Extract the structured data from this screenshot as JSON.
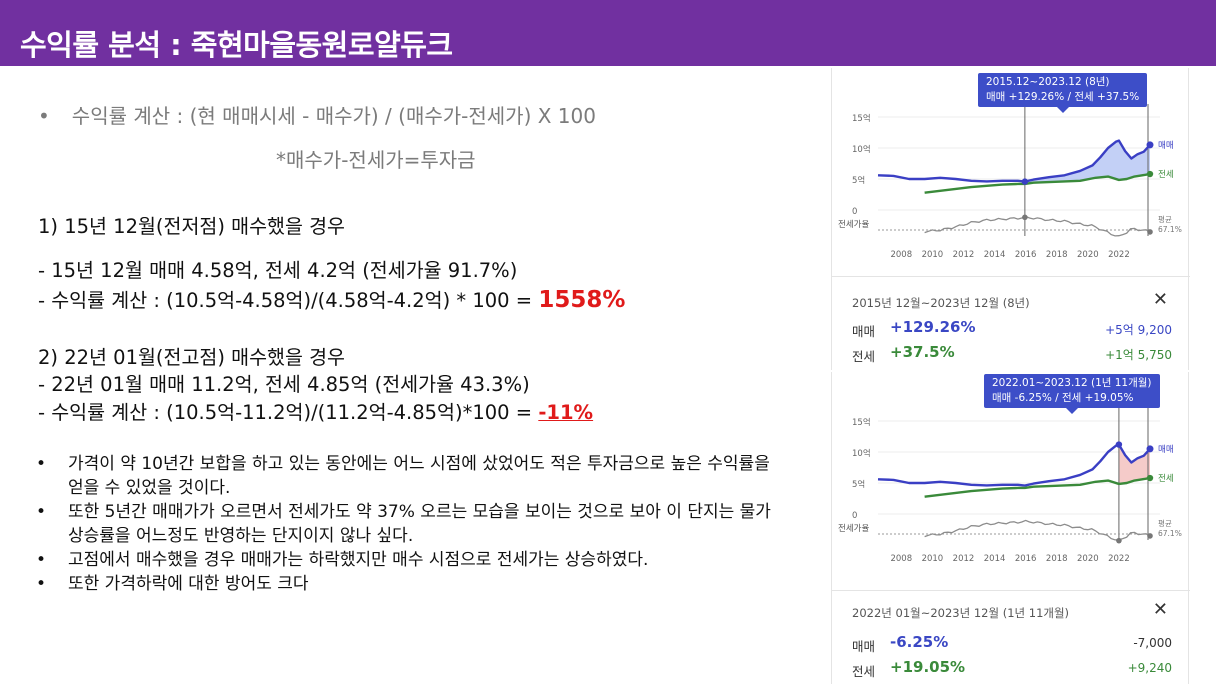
{
  "header": {
    "title": "수익률 분석 : 죽현마을동원로얄듀크"
  },
  "formula": {
    "bullet": "•",
    "text": "수익률 계산 : (현 매매시세 - 매수가) / (매수가-전세가) X 100",
    "note": "*매수가-전세가=투자금"
  },
  "case1": {
    "heading": "1)  15년 12월(전저점) 매수했을 경우",
    "line1": "- 15년 12월 매매 4.58억, 전세 4.2억 (전세가율 91.7%)",
    "line2_prefix": "- 수익률 계산 : (10.5억-4.58억)/(4.58억-4.2억)  * 100  = ",
    "result": "1558%"
  },
  "case2": {
    "heading": "2)  22년 01월(전고점) 매수했을 경우",
    "line1": "- 22년 01월 매매 11.2억, 전세 4.85억 (전세가율 43.3%)",
    "line2_prefix": "- 수익률 계산 : (10.5억-11.2억)/(11.2억-4.85억)*100  = ",
    "result": "-11%"
  },
  "bullets": [
    {
      "mark": "•",
      "text": "가격이 약 10년간 보합을 하고 있는 동안에는 어느 시점에 샀었어도 적은 투자금으로 높은 수익률을 얻을 수 있었을 것이다."
    },
    {
      "mark": "•",
      "text": "또한 5년간 매매가가 오르면서 전세가도 약 37% 오르는 모습을 보이는 것으로 보아 이 단지는 물가상승률을 어느정도 반영하는 단지이지 않나 싶다."
    },
    {
      "mark": "•",
      "text": "고점에서 매수했을 경우 매매가는 하락했지만 매수 시점으로 전세가는 상승하였다."
    },
    {
      "mark": "•",
      "text": "또한 가격하락에 대한 방어도 크다"
    }
  ],
  "charts": [
    {
      "tooltip_line1": "2015.12~2023.12 (8년)",
      "tooltip_line2": "매매 +129.26%  /  전세 +37.5%",
      "period": "2015년 12월~2023년 12월 (8년)",
      "close": "✕",
      "sale_label": "매매",
      "sale_pct": "+129.26%",
      "sale_amt": "+5억 9,200",
      "jeonse_label": "전세",
      "jeonse_pct": "+37.5%",
      "jeonse_amt": "+1억 5,750",
      "start": 2015.95
    },
    {
      "tooltip_line1": "2022.01~2023.12 (1년 11개월)",
      "tooltip_line2": "매매 -6.25%  /  전세 +19.05%",
      "period": "2022년 01월~2023년 12월 (1년 11개월)",
      "close": "✕",
      "sale_label": "매매",
      "sale_pct": "-6.25%",
      "sale_amt": "-7,000",
      "jeonse_label": "전세",
      "jeonse_pct": "+19.05%",
      "jeonse_amt": "+9,240",
      "start": 2022.0
    }
  ],
  "chart_data": {
    "type": "line",
    "ylabels": [
      "15억",
      "10억",
      "5억",
      "0"
    ],
    "ylim": [
      0,
      15
    ],
    "xlabels": [
      "2008",
      "2010",
      "2012",
      "2014",
      "2016",
      "2018",
      "2020",
      "2022"
    ],
    "ratio_label": "전세가율",
    "avg_label": "평균",
    "avg_value": "67.1%",
    "series": [
      {
        "name": "매매",
        "color": "#3a3fc4",
        "x": [
          2006.5,
          2007.5,
          2008.5,
          2009.5,
          2010.5,
          2011.5,
          2012.5,
          2013.5,
          2014.5,
          2015.5,
          2015.95,
          2016.5,
          2017.5,
          2018.5,
          2019.5,
          2020.3,
          2020.8,
          2021.3,
          2021.8,
          2022.0,
          2022.4,
          2022.8,
          2023.2,
          2023.6,
          2024.0
        ],
        "values": [
          5.6,
          5.5,
          5.0,
          5.0,
          5.2,
          5.0,
          4.7,
          4.6,
          4.7,
          4.7,
          4.58,
          4.9,
          5.3,
          5.6,
          6.3,
          7.2,
          8.5,
          10.0,
          11.0,
          11.2,
          9.5,
          8.3,
          9.0,
          9.4,
          10.5
        ]
      },
      {
        "name": "전세",
        "color": "#3a8a3a",
        "x": [
          2009.5,
          2010.5,
          2011.5,
          2012.5,
          2013.5,
          2014.5,
          2015.5,
          2015.95,
          2016.5,
          2017.5,
          2018.5,
          2019.5,
          2020.5,
          2021.3,
          2022.0,
          2022.5,
          2023.0,
          2023.5,
          2024.0
        ],
        "values": [
          2.8,
          3.1,
          3.4,
          3.7,
          3.9,
          4.1,
          4.2,
          4.2,
          4.4,
          4.5,
          4.6,
          4.7,
          5.2,
          5.4,
          4.85,
          5.0,
          5.4,
          5.6,
          5.8
        ]
      }
    ]
  }
}
